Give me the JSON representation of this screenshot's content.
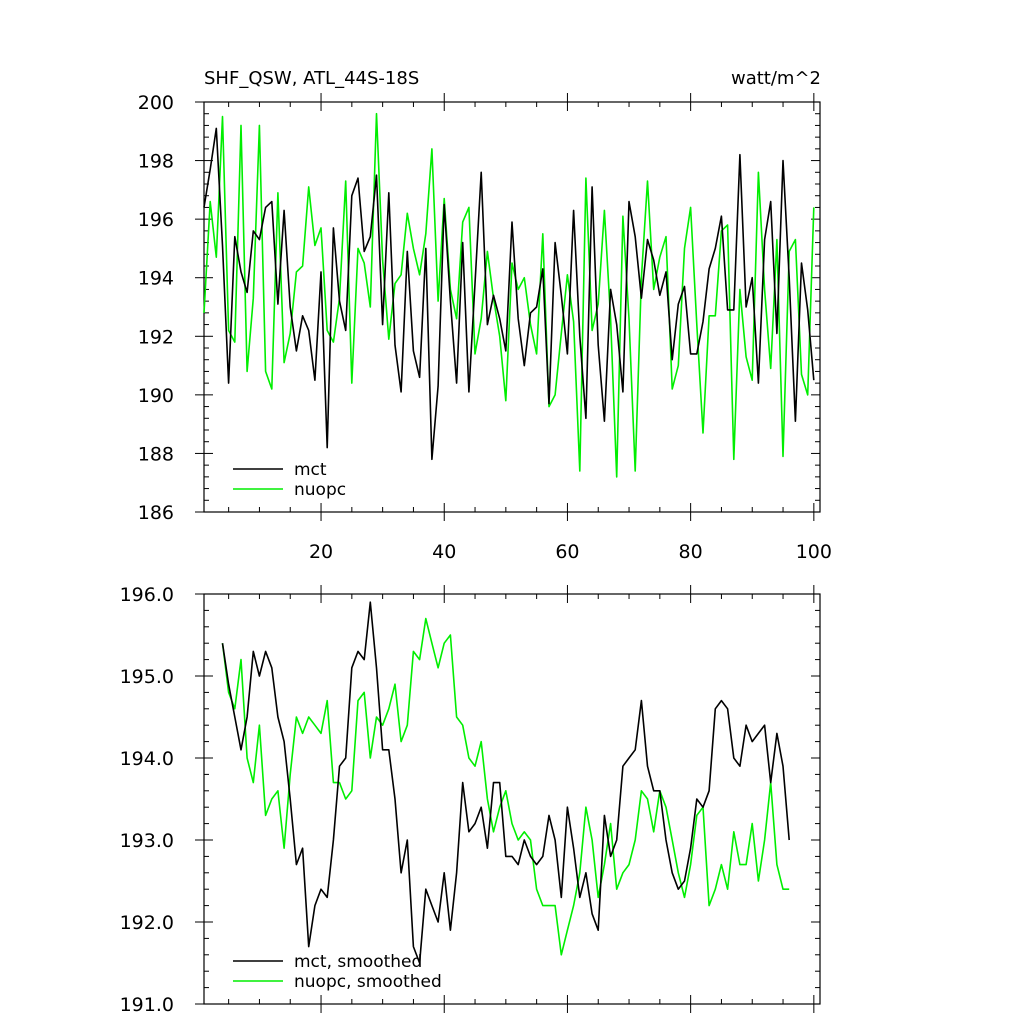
{
  "chart_data": [
    {
      "type": "line",
      "title": "SHF_QSW, ATL_44S-18S",
      "units": "watt/m^2",
      "xlim": [
        1,
        101
      ],
      "ylim": [
        186,
        200
      ],
      "yticks": [
        "186",
        "188",
        "190",
        "192",
        "194",
        "196",
        "198",
        "200"
      ],
      "ytick_values": [
        186,
        188,
        190,
        192,
        194,
        196,
        198,
        200
      ],
      "xticks": [
        "20",
        "40",
        "60",
        "80",
        "100"
      ],
      "xtick_values": [
        20,
        40,
        60,
        80,
        100
      ],
      "legend_position": "bottom-left",
      "series": [
        {
          "name": "mct",
          "color": "#000000",
          "x_start": 1,
          "values": [
            196.4,
            197.7,
            199.1,
            195.1,
            190.4,
            195.4,
            194.2,
            193.5,
            195.6,
            195.3,
            196.4,
            196.6,
            193.1,
            196.3,
            193.0,
            191.5,
            192.7,
            192.2,
            190.5,
            194.2,
            188.2,
            195.7,
            193.2,
            192.2,
            196.8,
            197.4,
            194.9,
            195.4,
            197.5,
            192.4,
            196.9,
            191.7,
            190.1,
            194.9,
            191.5,
            190.6,
            195.0,
            187.8,
            190.3,
            196.5,
            193.2,
            190.4,
            195.2,
            190.1,
            193.8,
            197.6,
            192.4,
            193.4,
            192.6,
            191.5,
            195.9,
            192.6,
            191.0,
            192.8,
            193.0,
            194.3,
            189.7,
            195.2,
            193.4,
            191.4,
            196.3,
            192.0,
            189.2,
            197.1,
            191.7,
            189.1,
            193.6,
            192.4,
            190.1,
            196.6,
            195.4,
            193.3,
            195.3,
            194.6,
            193.4,
            194.2,
            191.2,
            193.1,
            193.7,
            191.4,
            191.4,
            192.5,
            194.3,
            195.0,
            196.1,
            192.9,
            192.9,
            198.2,
            193.0,
            194.0,
            190.4,
            195.3,
            196.6,
            192.1,
            198.0,
            194.0,
            189.1,
            194.5,
            192.9,
            190.5
          ]
        },
        {
          "name": "nuopc",
          "color": "#00ee00",
          "x_start": 1,
          "values": [
            192.8,
            196.6,
            194.7,
            199.5,
            192.2,
            191.8,
            199.2,
            190.8,
            193.3,
            199.2,
            190.8,
            190.2,
            196.9,
            191.1,
            192.1,
            194.2,
            194.4,
            197.1,
            195.1,
            195.7,
            192.2,
            191.8,
            193.3,
            197.3,
            190.4,
            195.0,
            194.5,
            193.0,
            199.6,
            194.6,
            191.9,
            193.8,
            194.1,
            196.2,
            195.0,
            194.1,
            195.5,
            198.4,
            193.2,
            196.7,
            193.6,
            192.6,
            195.9,
            196.4,
            191.4,
            192.6,
            194.9,
            193.3,
            192.0,
            189.8,
            194.5,
            193.6,
            194.0,
            192.4,
            191.4,
            195.5,
            189.6,
            190.0,
            192.1,
            194.1,
            192.5,
            187.4,
            197.4,
            192.2,
            193.1,
            196.3,
            192.6,
            187.2,
            196.1,
            192.6,
            187.4,
            194.0,
            197.3,
            193.6,
            194.7,
            195.4,
            190.2,
            191.0,
            195.0,
            196.4,
            192.4,
            188.7,
            192.7,
            192.7,
            195.6,
            195.8,
            187.8,
            193.6,
            191.3,
            190.5,
            197.6,
            193.6,
            190.9,
            195.3,
            187.9,
            194.9,
            195.3,
            190.7,
            190.0,
            196.4
          ]
        }
      ]
    },
    {
      "type": "line",
      "title": "",
      "ylim": [
        191.0,
        196.0
      ],
      "xlim": [
        1,
        101
      ],
      "yticks": [
        "191.0",
        "192.0",
        "193.0",
        "194.0",
        "195.0",
        "196.0"
      ],
      "ytick_values": [
        191.0,
        192.0,
        193.0,
        194.0,
        195.0,
        196.0
      ],
      "xticks": [
        "",
        "",
        "",
        "",
        ""
      ],
      "xtick_values": [
        20,
        40,
        60,
        80,
        100
      ],
      "legend_position": "bottom-left",
      "series": [
        {
          "name": "mct, smoothed",
          "color": "#000000",
          "x_start": 4,
          "values": [
            195.4,
            194.9,
            194.5,
            194.1,
            194.5,
            195.3,
            195.0,
            195.3,
            195.1,
            194.5,
            194.2,
            193.5,
            192.7,
            192.9,
            191.7,
            192.2,
            192.4,
            192.3,
            193.0,
            193.9,
            194.0,
            195.1,
            195.3,
            195.2,
            195.9,
            195.1,
            194.1,
            194.1,
            193.5,
            192.6,
            193.0,
            191.7,
            191.5,
            192.4,
            192.2,
            192.0,
            192.6,
            191.9,
            192.6,
            193.7,
            193.1,
            193.2,
            193.4,
            192.9,
            193.7,
            193.7,
            192.8,
            192.8,
            192.7,
            193.0,
            192.8,
            192.7,
            192.8,
            193.3,
            193.0,
            192.3,
            193.4,
            192.9,
            192.3,
            192.6,
            192.1,
            191.9,
            193.3,
            192.8,
            193.0,
            193.9,
            194.0,
            194.1,
            194.7,
            193.9,
            193.6,
            193.6,
            193.0,
            192.6,
            192.4,
            192.5,
            192.9,
            193.5,
            193.4,
            193.6,
            194.6,
            194.7,
            194.6,
            194.0,
            193.9,
            194.4,
            194.2,
            194.3,
            194.4,
            193.7,
            194.3,
            193.9,
            193.0
          ]
        },
        {
          "name": "nuopc, smoothed",
          "color": "#00ee00",
          "x_start": 4,
          "values": [
            195.4,
            194.8,
            194.6,
            195.2,
            194.0,
            193.7,
            194.4,
            193.3,
            193.5,
            193.6,
            192.9,
            193.8,
            194.5,
            194.3,
            194.5,
            194.4,
            194.3,
            194.7,
            193.7,
            193.7,
            193.5,
            193.6,
            194.7,
            194.8,
            194.0,
            194.5,
            194.4,
            194.6,
            194.9,
            194.2,
            194.4,
            195.3,
            195.2,
            195.7,
            195.4,
            195.1,
            195.4,
            195.5,
            194.5,
            194.4,
            194.0,
            193.9,
            194.2,
            193.5,
            193.1,
            193.4,
            193.6,
            193.2,
            193.0,
            193.1,
            193.0,
            192.4,
            192.2,
            192.2,
            192.2,
            191.6,
            191.9,
            192.2,
            192.6,
            193.4,
            193.0,
            192.3,
            192.7,
            193.2,
            192.4,
            192.6,
            192.7,
            193.0,
            193.6,
            193.5,
            193.1,
            193.6,
            193.4,
            193.0,
            192.6,
            192.3,
            192.7,
            193.3,
            193.4,
            192.2,
            192.4,
            192.7,
            192.4,
            193.1,
            192.7,
            192.7,
            193.2,
            192.5,
            193.0,
            193.7,
            192.7,
            192.4,
            192.4
          ]
        }
      ]
    }
  ]
}
